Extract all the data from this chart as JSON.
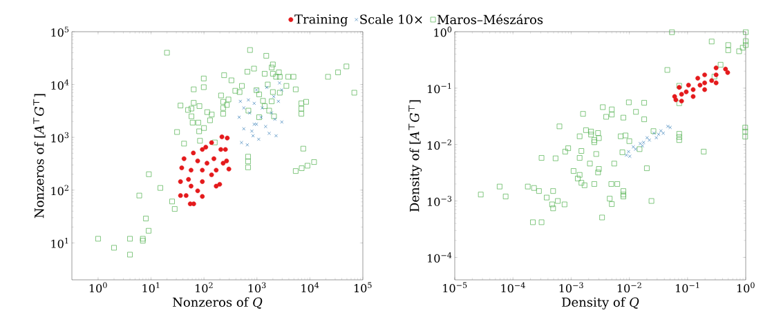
{
  "chart_data": [
    {
      "type": "scatter",
      "log": "xy",
      "legend": "top",
      "xlabel": "Nonzeros of *Q*",
      "ylabel": "Nonzeros of [*A*$^{⊤}$*G*$^{⊤}$]",
      "xlim": [
        0.32,
        100000
      ],
      "ylim": [
        2,
        100000
      ],
      "xticks": [
        {
          "value": 1,
          "label": "10$^{0}$"
        },
        {
          "value": 10,
          "label": "10$^{1}$"
        },
        {
          "value": 100,
          "label": "10$^{2}$"
        },
        {
          "value": 1000,
          "label": "10$^{3}$"
        },
        {
          "value": 10000,
          "label": "10$^{4}$"
        },
        {
          "value": 100000,
          "label": "10$^{5}$"
        }
      ],
      "yticks": [
        {
          "value": 10,
          "label": "10$^{1}$"
        },
        {
          "value": 100,
          "label": "10$^{2}$"
        },
        {
          "value": 1000,
          "label": "10$^{3}$"
        },
        {
          "value": 10000,
          "label": "10$^{4}$"
        },
        {
          "value": 100000,
          "label": "10$^{5}$"
        }
      ],
      "series": [
        {
          "name": "Training",
          "color": "#e41a1c",
          "marker": "circle",
          "x": [
            38,
            36,
            36,
            55,
            64,
            93,
            170,
            198,
            295,
            267,
            275,
            218,
            139,
            93,
            63,
            42,
            57,
            93,
            154,
            208,
            93,
            57,
            139,
            230,
            76,
            114,
            46,
            76,
            170,
            254,
            108,
            51
          ],
          "values": [
            264,
            145,
            79,
            55,
            55,
            76,
            119,
            129,
            251,
            357,
            970,
            1020,
            794,
            589,
            506,
            394,
            239,
            239,
            394,
            589,
            145,
            119,
            195,
            323,
            357,
            323,
            79,
            97,
            239,
            589,
            650,
            160
          ]
        },
        {
          "name": "Scale 10×",
          "color": "#377eb8",
          "marker": "cross",
          "x": [
            486,
            690,
            887,
            462,
            887,
            511,
            657,
            844,
            565,
            726,
            565,
            802,
            980,
            1540,
            2670,
            2950,
            2950,
            2300,
            1700,
            1080,
            980,
            1260,
            1880,
            2080,
            2540,
            1460,
            1200,
            2180
          ],
          "values": [
            4800,
            5100,
            4400,
            2400,
            1770,
            794,
            720,
            1070,
            1450,
            2900,
            3600,
            1310,
            7900,
            8800,
            10700,
            7900,
            1950,
            1070,
            1190,
            920,
            1770,
            3600,
            2900,
            5900,
            4800,
            1600,
            2400,
            2200
          ]
        },
        {
          "name": "Maros–Mészáros",
          "color": "#4daf4a",
          "marker": "square",
          "x": [
            20,
            740,
            1500,
            2000,
            1900,
            49000,
            34000,
            22000,
            69000,
            880,
            660,
            1400,
            2000,
            2600,
            2300,
            2700,
            3900,
            4900,
            99,
            240,
            330,
            99,
            64,
            520,
            390,
            470,
            1600,
            3600,
            5400,
            980,
            210,
            290,
            230,
            270,
            230,
            230,
            36,
            64,
            58,
            82,
            50,
            58,
            61,
            78,
            115,
            140,
            130,
            100,
            81,
            31,
            84,
            42,
            160,
            690,
            1100,
            1100,
            1300,
            1400,
            1900,
            1700,
            2100,
            2000,
            2700,
            6900,
            8500,
            6900,
            6900,
            7500,
            12000,
            9000,
            7000,
            5400,
            680,
            680,
            680,
            9.1,
            15,
            6,
            25,
            28,
            8,
            9,
            1,
            2,
            4,
            4,
            7,
            7
          ],
          "values": [
            40000,
            45000,
            35000,
            24000,
            21000,
            22000,
            17000,
            14000,
            7000,
            20000,
            17500,
            16000,
            16000,
            17000,
            14000,
            14000,
            14000,
            14000,
            13000,
            15000,
            12000,
            8900,
            8100,
            9400,
            7600,
            7200,
            10000,
            9400,
            8100,
            7800,
            6200,
            5200,
            4700,
            4100,
            3600,
            2800,
            4000,
            4500,
            3500,
            3900,
            3300,
            2500,
            1900,
            1900,
            3000,
            2700,
            2100,
            1500,
            1300,
            1260,
            860,
            760,
            800,
            3200,
            2400,
            6500,
            4900,
            3900,
            4800,
            3200,
            2500,
            7200,
            7000,
            4400,
            4700,
            3500,
            2800,
            610,
            340,
            290,
            260,
            230,
            430,
            350,
            270,
            200,
            110,
            79,
            61,
            44,
            29,
            17,
            12,
            8.1,
            12,
            6,
            12,
            11
          ]
        }
      ]
    },
    {
      "type": "scatter",
      "log": "xy",
      "legend": false,
      "xlabel": "Density of *Q*",
      "ylabel": "Density of [*A*$^{⊤}$*G*$^{⊤}$]",
      "xlim": [
        1e-05,
        1
      ],
      "ylim": [
        4e-05,
        1
      ],
      "xticks": [
        {
          "value": 1e-05,
          "label": "10$^{−5}$"
        },
        {
          "value": 0.0001,
          "label": "10$^{−4}$"
        },
        {
          "value": 0.001,
          "label": "10$^{−3}$"
        },
        {
          "value": 0.01,
          "label": "10$^{−2}$"
        },
        {
          "value": 0.1,
          "label": "10$^{−1}$"
        },
        {
          "value": 1,
          "label": "10$^{0}$"
        }
      ],
      "yticks": [
        {
          "value": 0.0001,
          "label": "10$^{−4}$"
        },
        {
          "value": 0.001,
          "label": "10$^{−3}$"
        },
        {
          "value": 0.01,
          "label": "10$^{−2}$"
        },
        {
          "value": 0.1,
          "label": "10$^{−1}$"
        },
        {
          "value": 1,
          "label": "10$^{0}$"
        }
      ],
      "series": [
        {
          "color": "#e41a1c",
          "marker": "circle",
          "x": [
            0.06,
            0.063,
            0.079,
            0.125,
            0.197,
            0.31,
            0.49,
            0.45,
            0.31,
            0.197,
            0.15,
            0.104,
            0.072,
            0.079,
            0.125,
            0.197,
            0.31,
            0.164,
            0.095,
            0.26
          ],
          "values": [
            0.071,
            0.062,
            0.059,
            0.071,
            0.094,
            0.124,
            0.189,
            0.218,
            0.228,
            0.172,
            0.15,
            0.113,
            0.103,
            0.078,
            0.094,
            0.124,
            0.172,
            0.113,
            0.086,
            0.136
          ]
        },
        {
          "color": "#377eb8",
          "marker": "cross",
          "x": [
            0.0089,
            0.0102,
            0.0128,
            0.0168,
            0.0221,
            0.0291,
            0.0383,
            0.0503,
            0.0459,
            0.0349,
            0.0266,
            0.0202,
            0.0154,
            0.0117,
            0.0097,
            0.0176,
            0.0319
          ],
          "values": [
            0.0065,
            0.0062,
            0.0083,
            0.0095,
            0.012,
            0.0132,
            0.0159,
            0.0201,
            0.021,
            0.0175,
            0.0159,
            0.0132,
            0.0104,
            0.0091,
            0.0075,
            0.0109,
            0.0152
          ]
        },
        {
          "color": "#4daf4a",
          "marker": "square",
          "x": [
            0.054,
            1.0,
            1.0,
            1.0,
            0.89,
            0.77,
            0.5,
            0.5,
            0.26,
            0.37,
            0.29,
            0.045,
            0.072,
            0.072,
            0.0098,
            0.018,
            0.013,
            0.018,
            0.0035,
            0.005,
            0.005,
            0.004,
            0.0079,
            0.0016,
            0.00063,
            0.0018,
            0.0022,
            0.0022,
            0.0029,
            0.003,
            0.0014,
            0.0025,
            0.0025,
            0.0071,
            0.0086,
            0.01,
            0.026,
            0.072,
            0.072,
            0.072,
            0.98,
            0.98,
            0.98,
            0.19,
            0.015,
            0.0076,
            0.00089,
            0.00079,
            0.0015,
            0.0027,
            0.0014,
            0.00054,
            0.00031,
            0.0021,
            0.0055,
            0.003,
            0.0029,
            0.0011,
            0.0014,
            0.0013,
            0.0015,
            0.0017,
            0.0025,
            0.02,
            0.0049,
            0.0062,
            0.0079,
            0.0079,
            0.0079,
            0.0046,
            0.005,
            0.024,
            0.0034,
            0.00018,
            0.00023,
            0.00028,
            5.9e-05,
            2.8e-05,
            7.5e-05,
            0.00038,
            0.00049,
            0.00047,
            0.00049,
            0.00059,
            0.00077,
            0.00022,
            0.00031
          ],
          "values": [
            0.98,
            0.98,
            0.68,
            0.58,
            0.52,
            0.45,
            0.58,
            0.47,
            0.67,
            0.26,
            0.16,
            0.21,
            0.11,
            0.054,
            0.056,
            0.055,
            0.038,
            0.028,
            0.046,
            0.042,
            0.034,
            0.031,
            0.03,
            0.035,
            0.021,
            0.018,
            0.017,
            0.015,
            0.016,
            0.013,
            0.014,
            0.012,
            0.011,
            0.014,
            0.0145,
            0.0115,
            0.0173,
            0.0155,
            0.0136,
            0.012,
            0.02,
            0.017,
            0.0138,
            0.0075,
            0.0083,
            0.0073,
            0.0086,
            0.0075,
            0.0077,
            0.0068,
            0.0058,
            0.0057,
            0.0058,
            0.0046,
            0.0046,
            0.0037,
            0.0032,
            0.0034,
            0.0029,
            0.0025,
            0.0021,
            0.0019,
            0.002,
            0.0038,
            0.002,
            0.002,
            0.0015,
            0.0013,
            0.0012,
            0.0011,
            0.00088,
            0.001,
            0.00051,
            0.0018,
            0.0017,
            0.0015,
            0.0018,
            0.0013,
            0.0012,
            0.00115,
            0.0015,
            0.00087,
            0.00074,
            0.001,
            0.00087,
            0.00042,
            0.00042
          ]
        }
      ]
    }
  ]
}
